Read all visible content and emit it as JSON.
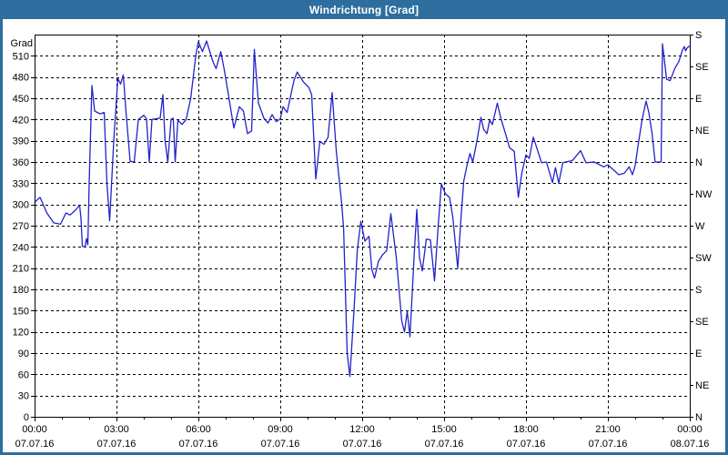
{
  "window": {
    "title": "Windrichtung [Grad]"
  },
  "colors": {
    "titlebar_bg": "#2e6e9e",
    "frame_border": "#2e6e9e",
    "line": "#2222cc",
    "grid": "#000000",
    "axis": "#000000",
    "label": "#000000",
    "plot_bg": "#ffffff"
  },
  "chart_data": {
    "type": "line",
    "title": "Windrichtung [Grad]",
    "ylabel": "Grad",
    "ylim": [
      0,
      540
    ],
    "xlim": [
      0,
      24
    ],
    "grid": "dashed",
    "legend": "none",
    "y_left_ticks": [
      510,
      480,
      450,
      420,
      390,
      360,
      330,
      300,
      270,
      240,
      210,
      180,
      150,
      120,
      90,
      60,
      30,
      0
    ],
    "y_grid_step": 30,
    "right_axis": [
      {
        "deg": 540,
        "label": "S"
      },
      {
        "deg": 495,
        "label": "SE"
      },
      {
        "deg": 450,
        "label": "E"
      },
      {
        "deg": 405,
        "label": "NE"
      },
      {
        "deg": 360,
        "label": "N"
      },
      {
        "deg": 315,
        "label": "NW"
      },
      {
        "deg": 270,
        "label": "W"
      },
      {
        "deg": 225,
        "label": "SW"
      },
      {
        "deg": 180,
        "label": "S"
      },
      {
        "deg": 135,
        "label": "SE"
      },
      {
        "deg": 90,
        "label": "E"
      },
      {
        "deg": 45,
        "label": "NE"
      },
      {
        "deg": 0,
        "label": "N"
      }
    ],
    "x_ticks": [
      {
        "hour": 0,
        "time": "00:00",
        "date": "07.07.16"
      },
      {
        "hour": 3,
        "time": "03:00",
        "date": "07.07.16"
      },
      {
        "hour": 6,
        "time": "06:00",
        "date": "07.07.16"
      },
      {
        "hour": 9,
        "time": "09:00",
        "date": "07.07.16"
      },
      {
        "hour": 12,
        "time": "12:00",
        "date": "07.07.16"
      },
      {
        "hour": 15,
        "time": "15:00",
        "date": "07.07.16"
      },
      {
        "hour": 18,
        "time": "18:00",
        "date": "07.07.16"
      },
      {
        "hour": 21,
        "time": "21:00",
        "date": "07.07.16"
      },
      {
        "hour": 24,
        "time": "00:00",
        "date": "08.07.16"
      }
    ],
    "series": [
      {
        "name": "Windrichtung",
        "color": "#2222cc",
        "points": [
          [
            0.0,
            303
          ],
          [
            0.2,
            310
          ],
          [
            0.45,
            288
          ],
          [
            0.7,
            274
          ],
          [
            0.95,
            272
          ],
          [
            1.15,
            288
          ],
          [
            1.3,
            285
          ],
          [
            1.5,
            292
          ],
          [
            1.65,
            299
          ],
          [
            1.7,
            280
          ],
          [
            1.75,
            241
          ],
          [
            1.85,
            240
          ],
          [
            1.9,
            252
          ],
          [
            1.95,
            243
          ],
          [
            2.0,
            330
          ],
          [
            2.1,
            468
          ],
          [
            2.2,
            432
          ],
          [
            2.4,
            428
          ],
          [
            2.55,
            430
          ],
          [
            2.65,
            330
          ],
          [
            2.75,
            277
          ],
          [
            2.9,
            390
          ],
          [
            3.05,
            478
          ],
          [
            3.15,
            470
          ],
          [
            3.25,
            483
          ],
          [
            3.35,
            430
          ],
          [
            3.5,
            361
          ],
          [
            3.65,
            360
          ],
          [
            3.8,
            420
          ],
          [
            4.0,
            426
          ],
          [
            4.1,
            421
          ],
          [
            4.2,
            360
          ],
          [
            4.3,
            420
          ],
          [
            4.6,
            422
          ],
          [
            4.7,
            455
          ],
          [
            4.78,
            390
          ],
          [
            4.88,
            360
          ],
          [
            5.0,
            420
          ],
          [
            5.08,
            422
          ],
          [
            5.15,
            360
          ],
          [
            5.25,
            419
          ],
          [
            5.4,
            413
          ],
          [
            5.55,
            420
          ],
          [
            5.72,
            450
          ],
          [
            5.9,
            509
          ],
          [
            6.0,
            530
          ],
          [
            6.15,
            516
          ],
          [
            6.3,
            531
          ],
          [
            6.45,
            512
          ],
          [
            6.55,
            500
          ],
          [
            6.65,
            492
          ],
          [
            6.82,
            516
          ],
          [
            6.95,
            490
          ],
          [
            7.1,
            455
          ],
          [
            7.3,
            408
          ],
          [
            7.5,
            438
          ],
          [
            7.65,
            432
          ],
          [
            7.8,
            400
          ],
          [
            7.95,
            404
          ],
          [
            8.05,
            519
          ],
          [
            8.2,
            443
          ],
          [
            8.4,
            422
          ],
          [
            8.55,
            415
          ],
          [
            8.7,
            427
          ],
          [
            8.85,
            417
          ],
          [
            9.0,
            421
          ],
          [
            9.1,
            438
          ],
          [
            9.25,
            430
          ],
          [
            9.5,
            475
          ],
          [
            9.62,
            487
          ],
          [
            9.85,
            473
          ],
          [
            10.05,
            465
          ],
          [
            10.15,
            455
          ],
          [
            10.3,
            336
          ],
          [
            10.45,
            389
          ],
          [
            10.6,
            385
          ],
          [
            10.75,
            395
          ],
          [
            10.9,
            458
          ],
          [
            11.05,
            376
          ],
          [
            11.25,
            301
          ],
          [
            11.32,
            266
          ],
          [
            11.45,
            90
          ],
          [
            11.55,
            57
          ],
          [
            11.7,
            150
          ],
          [
            11.82,
            235
          ],
          [
            11.95,
            276
          ],
          [
            12.1,
            248
          ],
          [
            12.25,
            255
          ],
          [
            12.35,
            209
          ],
          [
            12.45,
            196
          ],
          [
            12.6,
            220
          ],
          [
            12.75,
            229
          ],
          [
            12.9,
            235
          ],
          [
            13.05,
            287
          ],
          [
            13.25,
            225
          ],
          [
            13.45,
            135
          ],
          [
            13.55,
            120
          ],
          [
            13.65,
            149
          ],
          [
            13.75,
            113
          ],
          [
            13.9,
            225
          ],
          [
            14.0,
            293
          ],
          [
            14.1,
            225
          ],
          [
            14.2,
            206
          ],
          [
            14.35,
            251
          ],
          [
            14.5,
            250
          ],
          [
            14.65,
            192
          ],
          [
            14.78,
            267
          ],
          [
            14.9,
            329
          ],
          [
            15.05,
            315
          ],
          [
            15.2,
            310
          ],
          [
            15.32,
            282
          ],
          [
            15.5,
            210
          ],
          [
            15.62,
            281
          ],
          [
            15.72,
            333
          ],
          [
            15.85,
            357
          ],
          [
            15.95,
            372
          ],
          [
            16.05,
            360
          ],
          [
            16.2,
            389
          ],
          [
            16.35,
            423
          ],
          [
            16.45,
            406
          ],
          [
            16.57,
            400
          ],
          [
            16.67,
            419
          ],
          [
            16.77,
            413
          ],
          [
            16.95,
            443
          ],
          [
            17.07,
            423
          ],
          [
            17.25,
            400
          ],
          [
            17.4,
            380
          ],
          [
            17.57,
            375
          ],
          [
            17.72,
            310
          ],
          [
            17.85,
            345
          ],
          [
            18.0,
            370
          ],
          [
            18.12,
            365
          ],
          [
            18.27,
            395
          ],
          [
            18.42,
            377
          ],
          [
            18.57,
            359
          ],
          [
            18.75,
            360
          ],
          [
            18.97,
            331
          ],
          [
            19.08,
            352
          ],
          [
            19.2,
            330
          ],
          [
            19.35,
            359
          ],
          [
            19.7,
            362
          ],
          [
            20.0,
            376
          ],
          [
            20.2,
            359
          ],
          [
            20.5,
            360
          ],
          [
            20.85,
            353
          ],
          [
            21.0,
            356
          ],
          [
            21.4,
            342
          ],
          [
            21.6,
            344
          ],
          [
            21.78,
            353
          ],
          [
            21.9,
            342
          ],
          [
            22.0,
            355
          ],
          [
            22.12,
            387
          ],
          [
            22.25,
            419
          ],
          [
            22.4,
            446
          ],
          [
            22.5,
            430
          ],
          [
            22.62,
            400
          ],
          [
            22.73,
            360
          ],
          [
            22.95,
            360
          ],
          [
            23.0,
            527
          ],
          [
            23.15,
            477
          ],
          [
            23.28,
            475
          ],
          [
            23.45,
            492
          ],
          [
            23.6,
            502
          ],
          [
            23.72,
            517
          ],
          [
            23.8,
            523
          ],
          [
            23.85,
            517
          ],
          [
            23.9,
            521
          ],
          [
            24.0,
            524
          ]
        ]
      }
    ]
  }
}
